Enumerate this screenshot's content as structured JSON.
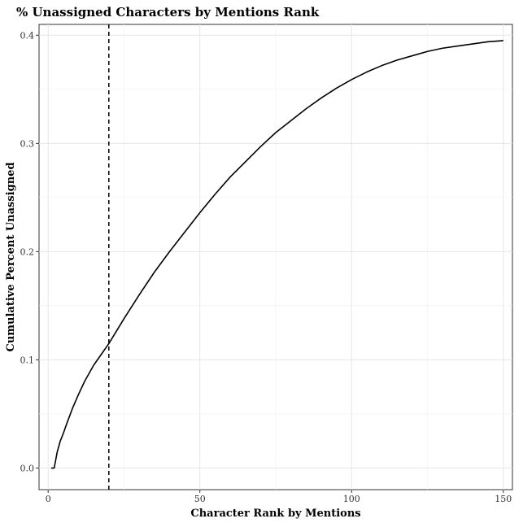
{
  "chart_data": {
    "type": "line",
    "title": "% Unassigned Characters by Mentions Rank",
    "xlabel": "Character Rank by Mentions",
    "ylabel": "Cumulative Percent Unassigned",
    "xlim": [
      -3,
      153
    ],
    "ylim": [
      -0.02,
      0.41
    ],
    "x_ticks": [
      0,
      50,
      100,
      150
    ],
    "y_ticks": [
      0.0,
      0.1,
      0.2,
      0.3,
      0.4
    ],
    "x_tick_labels": [
      "0",
      "50",
      "100",
      "150"
    ],
    "y_tick_labels": [
      "0.0",
      "0.1",
      "0.2",
      "0.3",
      "0.4"
    ],
    "grid": true,
    "reference_lines": [
      {
        "orientation": "vertical",
        "x": 20,
        "style": "dashed"
      }
    ],
    "series": [
      {
        "x": [
          1,
          2,
          3,
          4,
          5,
          6,
          8,
          10,
          12,
          15,
          20,
          25,
          30,
          35,
          40,
          45,
          50,
          55,
          60,
          65,
          70,
          75,
          80,
          85,
          90,
          95,
          100,
          105,
          110,
          115,
          120,
          125,
          130,
          135,
          140,
          145,
          150
        ],
        "values": [
          0.0,
          0.0,
          0.015,
          0.025,
          0.032,
          0.04,
          0.055,
          0.068,
          0.08,
          0.095,
          0.115,
          0.138,
          0.16,
          0.181,
          0.2,
          0.218,
          0.236,
          0.253,
          0.269,
          0.283,
          0.297,
          0.31,
          0.321,
          0.332,
          0.342,
          0.351,
          0.359,
          0.366,
          0.372,
          0.377,
          0.381,
          0.385,
          0.388,
          0.39,
          0.392,
          0.394,
          0.395
        ]
      }
    ]
  }
}
